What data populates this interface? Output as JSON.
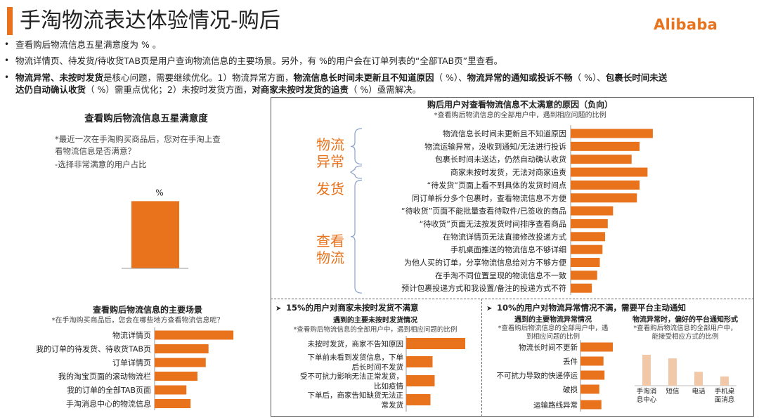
{
  "header": {
    "title": "手淘物流表达体验情况-购后",
    "logo": "Alibaba"
  },
  "bullets": [
    {
      "parts": [
        {
          "t": "查看购后物流信息五星满意度为    % 。",
          "b": false
        }
      ]
    },
    {
      "parts": [
        {
          "t": "物流详情页、待发货/待收货TAB页是用户查询物流信息的主要场景。另外，有    %的用户会在订单列表的“全部TAB页”里查看。",
          "b": false
        }
      ]
    },
    {
      "parts": [
        {
          "t": "物流异常、未按时发货",
          "b": true
        },
        {
          "t": "是核心问题，需要继续优化。1）物流异常方面，",
          "b": false
        },
        {
          "t": "物流信息长时间未更新且不知道原因",
          "b": true
        },
        {
          "t": "（   %）、",
          "b": false
        },
        {
          "t": "物流异常的通知或投诉不畅",
          "b": true
        },
        {
          "t": "（   %）、",
          "b": false
        },
        {
          "t": "包裹长时间未送",
          "b": true
        }
      ]
    },
    {
      "parts": [
        {
          "t": "达仍自动确认收货",
          "b": true
        },
        {
          "t": "（ %）需重点优化；2）未按时发货方面，",
          "b": false
        },
        {
          "t": "对商家未按时发货的追责",
          "b": true
        },
        {
          "t": "（    %）亟需解决。",
          "b": false
        }
      ]
    }
  ],
  "colors": {
    "accent": "#e8731c",
    "bar_light": "#f2c9a8",
    "text": "#222222",
    "border": "#555555"
  },
  "chart_data": [
    {
      "type": "bar",
      "title": "查看购后物流信息五星满意度",
      "notes": [
        "*最近一次在手淘购买商品后，您对在手淘上查",
        "看物流信息是否满意？",
        "-选择非常满意的用户占比"
      ],
      "categories": [
        ""
      ],
      "values": [
        1
      ],
      "data_label": "%",
      "ylim": [
        0,
        1.15
      ]
    },
    {
      "type": "bar",
      "orientation": "horizontal",
      "title": "查看购后物流信息的主要场景",
      "subtitle": "*在手淘购买商品后，您会在哪些地方查看物流信息呢？",
      "categories": [
        "手淘消息中心的物流信息",
        "我的订单的全部TAB页面",
        "我的淘宝页面的滚动物流栏",
        "订单详情页",
        "我的订单的待发货、待收货TAB页",
        "物流详情页"
      ],
      "values": [
        0.26,
        0.23,
        0.31,
        0.37,
        0.39,
        0.57
      ],
      "xlim": [
        0,
        0.6
      ]
    },
    {
      "type": "bar",
      "orientation": "horizontal",
      "title": "购后用户对查看物流信息不太满意的原因（负向）",
      "subtitle": "*查看购后物流信息的全部用户中，遇到相应问题的比例",
      "groups": [
        {
          "name": "物流异常",
          "categories": [
            "物流信息长时间未更新且不知道原因",
            "物流运输异常，没收到通知/无法进行投诉",
            "包裹长时间未送达，仍然自动确认收货"
          ]
        },
        {
          "name": "发货",
          "categories": [
            "商家未按时发货，无法对商家追责"
          ]
        },
        {
          "name": "查看物流",
          "categories": [
            "“待发货”页面上看不到具体的发货时间点",
            "同订单拆分多个包裹时，查看物流信息不方便",
            "“待收货”页面不能批量查看待取件/已签收的商品",
            "“待收货”页面无法按发货时间排序查看商品",
            "在物流详情页无法直接修改投递方式",
            "手机桌面推送的物流信息不够详细",
            "为他人买的订单，分享物流信息给对方不够方便",
            "在手淘不同位置呈现的物流信息不一致",
            "预计包裹投递方式和我设置/备注的投递方式不符"
          ]
        }
      ],
      "categories": [
        "物流信息长时间未更新且不知道原因",
        "物流运输异常，没收到通知/无法进行投诉",
        "包裹长时间未送达，仍然自动确认收货",
        "商家未按时发货，无法对商家追责",
        "“待发货”页面上看不到具体的发货时间点",
        "同订单拆分多个包裹时，查看物流信息不方便",
        "“待收货”页面不能批量查看待取件/已签收的商品",
        "“待收货”页面无法按发货时间排序查看商品",
        "在物流详情页无法直接修改投递方式",
        "手机桌面推送的物流信息不够详细",
        "为他人买的订单，分享物流信息给对方不够方便",
        "在手淘不同位置呈现的物流信息不一致",
        "预计包裹投递方式和我设置/备注的投递方式不符"
      ],
      "values": [
        0.31,
        0.26,
        0.23,
        0.29,
        0.26,
        0.25,
        0.16,
        0.14,
        0.13,
        0.12,
        0.11,
        0.1,
        0.08
      ],
      "xlim": [
        0,
        0.35
      ]
    },
    {
      "type": "bar",
      "orientation": "horizontal",
      "title": "15%的用户对商家未按时发货不满意",
      "subtitle": "遇到的主要未按时发货情况",
      "note": "*查看购后物流信息的全部用户中，遇到相应问题的比例",
      "categories": [
        "未按时发货，商家不告知原因",
        "下单前未看到发货信息，下单后长时间不发货",
        "受不可抗力影响无法正常发货，比如疫情",
        "下单后，商家告知缺货无法正常发货"
      ],
      "labels": [
        [
          "未按时发货，商家不告知原因"
        ],
        [
          "下单前未看到发货信息，下单",
          "后长时间不发货"
        ],
        [
          "受不可抗力影响无法正常发货，",
          "比如疫情"
        ],
        [
          "下单后，商家告知缺货无法正",
          "常发货"
        ]
      ],
      "values": [
        0.56,
        0.25,
        0.27,
        0.23
      ],
      "xlim": [
        0,
        0.6
      ]
    },
    {
      "type": "bar",
      "orientation": "horizontal",
      "title": "10%的用户对物流异常情况不满，需要平台主动通知",
      "subtitle": "遇到的主要物流异常情况",
      "note": [
        "*查看购后物流信息的全部用户中，遇",
        "到相应问题的比例"
      ],
      "categories": [
        "物流长时间不更新",
        "丢件",
        "不可抗力导致的快递停运",
        "破损",
        "运输路线异常"
      ],
      "values": [
        0.62,
        0.44,
        0.46,
        0.36,
        0.4
      ],
      "xlim": [
        0,
        0.7
      ]
    },
    {
      "type": "bar",
      "title": "物流异常时，偏好的平台通知形式",
      "subtitle": [
        "*查看购后物流信息的全部用户中，",
        "能接受相应方式的比例"
      ],
      "categories": [
        "手淘消息中心",
        "短信",
        "电话",
        "手机桌面消息"
      ],
      "labels": [
        [
          "手淘消",
          "息中心"
        ],
        [
          "短信"
        ],
        [
          "电话"
        ],
        [
          "手机桌",
          "面消息"
        ]
      ],
      "values": [
        0.6,
        0.53,
        0.27,
        0.18
      ],
      "ylim": [
        0,
        0.75
      ]
    }
  ]
}
